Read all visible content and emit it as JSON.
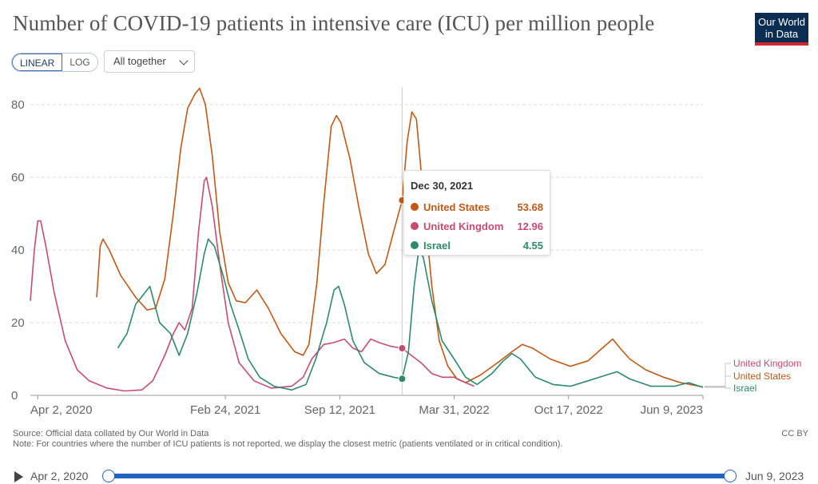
{
  "title": "Number of COVID-19 patients in intensive care (ICU) per million people",
  "logo": {
    "line1": "Our World",
    "line2": "in Data"
  },
  "controls": {
    "scale_linear": "LINEAR",
    "scale_log": "LOG",
    "entity_selector": "All together"
  },
  "chart_data": {
    "type": "line",
    "x_ticks": [
      "Apr 2, 2020",
      "Feb 24, 2021",
      "Sep 12, 2021",
      "Mar 31, 2022",
      "Oct 17, 2022",
      "Jun 9, 2023"
    ],
    "y_ticks": [
      0,
      20,
      40,
      60,
      80
    ],
    "ylim": [
      0,
      85
    ],
    "grid": true,
    "series": [
      {
        "name": "United States",
        "color": "#c05917",
        "points": [
          [
            "2020-07-14",
            27
          ],
          [
            "2020-07-20",
            41
          ],
          [
            "2020-07-25",
            43
          ],
          [
            "2020-08-05",
            40
          ],
          [
            "2020-08-25",
            33
          ],
          [
            "2020-09-20",
            27
          ],
          [
            "2020-10-10",
            23.5
          ],
          [
            "2020-10-25",
            24
          ],
          [
            "2020-11-10",
            32
          ],
          [
            "2020-11-25",
            50
          ],
          [
            "2020-12-08",
            68
          ],
          [
            "2020-12-20",
            79
          ],
          [
            "2021-01-02",
            83
          ],
          [
            "2021-01-10",
            84.5
          ],
          [
            "2021-01-20",
            80
          ],
          [
            "2021-02-01",
            66
          ],
          [
            "2021-02-14",
            45
          ],
          [
            "2021-03-01",
            31
          ],
          [
            "2021-03-15",
            26
          ],
          [
            "2021-03-31",
            25.5
          ],
          [
            "2021-04-20",
            29
          ],
          [
            "2021-05-10",
            24
          ],
          [
            "2021-06-01",
            17
          ],
          [
            "2021-06-25",
            12
          ],
          [
            "2021-07-10",
            11
          ],
          [
            "2021-07-20",
            14
          ],
          [
            "2021-08-03",
            31
          ],
          [
            "2021-08-15",
            53
          ],
          [
            "2021-08-28",
            74
          ],
          [
            "2021-09-06",
            77
          ],
          [
            "2021-09-14",
            75
          ],
          [
            "2021-09-30",
            65
          ],
          [
            "2021-10-15",
            52
          ],
          [
            "2021-11-01",
            39
          ],
          [
            "2021-11-15",
            33.5
          ],
          [
            "2021-11-30",
            36
          ],
          [
            "2021-12-15",
            45
          ],
          [
            "2021-12-30",
            53.68
          ],
          [
            "2022-01-08",
            70
          ],
          [
            "2022-01-16",
            78
          ],
          [
            "2022-01-24",
            76
          ],
          [
            "2022-02-05",
            55
          ],
          [
            "2022-02-20",
            30
          ],
          [
            "2022-03-05",
            15
          ],
          [
            "2022-03-20",
            8
          ],
          [
            "2022-04-05",
            4.5
          ],
          [
            "2022-04-20",
            3.5
          ],
          [
            "2022-05-15",
            5.5
          ],
          [
            "2022-06-15",
            9
          ],
          [
            "2022-07-10",
            12
          ],
          [
            "2022-07-28",
            14
          ],
          [
            "2022-08-15",
            13
          ],
          [
            "2022-09-15",
            10
          ],
          [
            "2022-10-20",
            8
          ],
          [
            "2022-11-20",
            9.5
          ],
          [
            "2022-12-15",
            13
          ],
          [
            "2023-01-02",
            15.5
          ],
          [
            "2023-01-15",
            13
          ],
          [
            "2023-02-01",
            10
          ],
          [
            "2023-03-01",
            7
          ],
          [
            "2023-04-01",
            5
          ],
          [
            "2023-05-01",
            3.5
          ],
          [
            "2023-06-09",
            2.3
          ]
        ]
      },
      {
        "name": "United Kingdom",
        "color": "#c74c6f",
        "points": [
          [
            "2020-03-20",
            26
          ],
          [
            "2020-03-27",
            40
          ],
          [
            "2020-04-02",
            48
          ],
          [
            "2020-04-07",
            48
          ],
          [
            "2020-04-15",
            42
          ],
          [
            "2020-05-01",
            28
          ],
          [
            "2020-05-20",
            15
          ],
          [
            "2020-06-10",
            7
          ],
          [
            "2020-07-01",
            4
          ],
          [
            "2020-08-01",
            2
          ],
          [
            "2020-09-01",
            1.2
          ],
          [
            "2020-10-01",
            1.5
          ],
          [
            "2020-10-20",
            4
          ],
          [
            "2020-11-10",
            11
          ],
          [
            "2020-11-25",
            17
          ],
          [
            "2020-12-05",
            20
          ],
          [
            "2020-12-15",
            18
          ],
          [
            "2020-12-28",
            24
          ],
          [
            "2021-01-08",
            45
          ],
          [
            "2021-01-18",
            59
          ],
          [
            "2021-01-22",
            60
          ],
          [
            "2021-02-01",
            52
          ],
          [
            "2021-02-15",
            35
          ],
          [
            "2021-03-01",
            20
          ],
          [
            "2021-03-20",
            9
          ],
          [
            "2021-04-15",
            4
          ],
          [
            "2021-05-15",
            2
          ],
          [
            "2021-06-20",
            2.5
          ],
          [
            "2021-07-10",
            5
          ],
          [
            "2021-07-25",
            10
          ],
          [
            "2021-08-15",
            14
          ],
          [
            "2021-09-01",
            14.5
          ],
          [
            "2021-09-20",
            15.5
          ],
          [
            "2021-10-05",
            13
          ],
          [
            "2021-10-20",
            12
          ],
          [
            "2021-11-05",
            15.5
          ],
          [
            "2021-11-20",
            14.5
          ],
          [
            "2021-12-10",
            13.5
          ],
          [
            "2021-12-30",
            12.96
          ],
          [
            "2022-01-15",
            11
          ],
          [
            "2022-02-01",
            9
          ],
          [
            "2022-02-20",
            6
          ],
          [
            "2022-03-10",
            5
          ],
          [
            "2022-03-31",
            5
          ],
          [
            "2022-04-20",
            3.5
          ],
          [
            "2022-05-05",
            2.5
          ]
        ]
      },
      {
        "name": "Israel",
        "color": "#2e8a68",
        "points": [
          [
            "2020-08-20",
            13
          ],
          [
            "2020-09-05",
            17
          ],
          [
            "2020-09-20",
            25
          ],
          [
            "2020-10-05",
            28
          ],
          [
            "2020-10-15",
            30
          ],
          [
            "2020-11-01",
            20
          ],
          [
            "2020-11-20",
            17
          ],
          [
            "2020-12-05",
            11
          ],
          [
            "2020-12-20",
            17
          ],
          [
            "2021-01-05",
            28
          ],
          [
            "2021-01-18",
            39
          ],
          [
            "2021-01-25",
            43
          ],
          [
            "2021-02-05",
            41
          ],
          [
            "2021-02-20",
            33
          ],
          [
            "2021-03-05",
            25
          ],
          [
            "2021-03-20",
            18
          ],
          [
            "2021-04-05",
            10
          ],
          [
            "2021-04-25",
            5
          ],
          [
            "2021-05-20",
            2.5
          ],
          [
            "2021-06-20",
            1.5
          ],
          [
            "2021-07-15",
            3
          ],
          [
            "2021-08-01",
            10
          ],
          [
            "2021-08-20",
            20
          ],
          [
            "2021-09-02",
            29
          ],
          [
            "2021-09-10",
            30
          ],
          [
            "2021-09-20",
            25
          ],
          [
            "2021-10-05",
            15
          ],
          [
            "2021-10-25",
            9
          ],
          [
            "2021-11-20",
            6
          ],
          [
            "2021-12-15",
            5
          ],
          [
            "2021-12-30",
            4.55
          ],
          [
            "2022-01-10",
            12
          ],
          [
            "2022-01-20",
            30
          ],
          [
            "2022-01-28",
            40
          ],
          [
            "2022-02-05",
            38
          ],
          [
            "2022-02-20",
            26
          ],
          [
            "2022-03-10",
            15
          ],
          [
            "2022-03-31",
            10
          ],
          [
            "2022-04-20",
            5
          ],
          [
            "2022-05-10",
            3
          ],
          [
            "2022-06-05",
            6
          ],
          [
            "2022-06-25",
            9.5
          ],
          [
            "2022-07-10",
            11.5
          ],
          [
            "2022-07-25",
            10
          ],
          [
            "2022-08-20",
            5
          ],
          [
            "2022-09-20",
            3
          ],
          [
            "2022-10-20",
            2.5
          ],
          [
            "2022-11-20",
            4
          ],
          [
            "2022-12-20",
            5.5
          ],
          [
            "2023-01-10",
            6.5
          ],
          [
            "2023-02-01",
            4.5
          ],
          [
            "2023-03-10",
            2.5
          ],
          [
            "2023-04-20",
            2.5
          ],
          [
            "2023-05-15",
            3.5
          ],
          [
            "2023-06-09",
            2.2
          ]
        ]
      }
    ],
    "end_labels": [
      "United Kingdom",
      "United States",
      "Israel"
    ],
    "hover": {
      "x": "2021-12-30"
    }
  },
  "tooltip": {
    "date": "Dec 30, 2021",
    "rows": [
      {
        "name": "United States",
        "value": "53.68",
        "color": "#c05917"
      },
      {
        "name": "United Kingdom",
        "value": "12.96",
        "color": "#c74c6f"
      },
      {
        "name": "Israel",
        "value": "4.55",
        "color": "#2e8a68"
      }
    ]
  },
  "footer": {
    "source": "Source: Official data collated by Our World in Data",
    "note": "Note: For countries where the number of ICU patients is not reported, we display the closest metric (patients ventilated or in critical condition).",
    "license": "CC BY"
  },
  "timeline": {
    "start": "Apr 2, 2020",
    "end": "Jun 9, 2023"
  }
}
